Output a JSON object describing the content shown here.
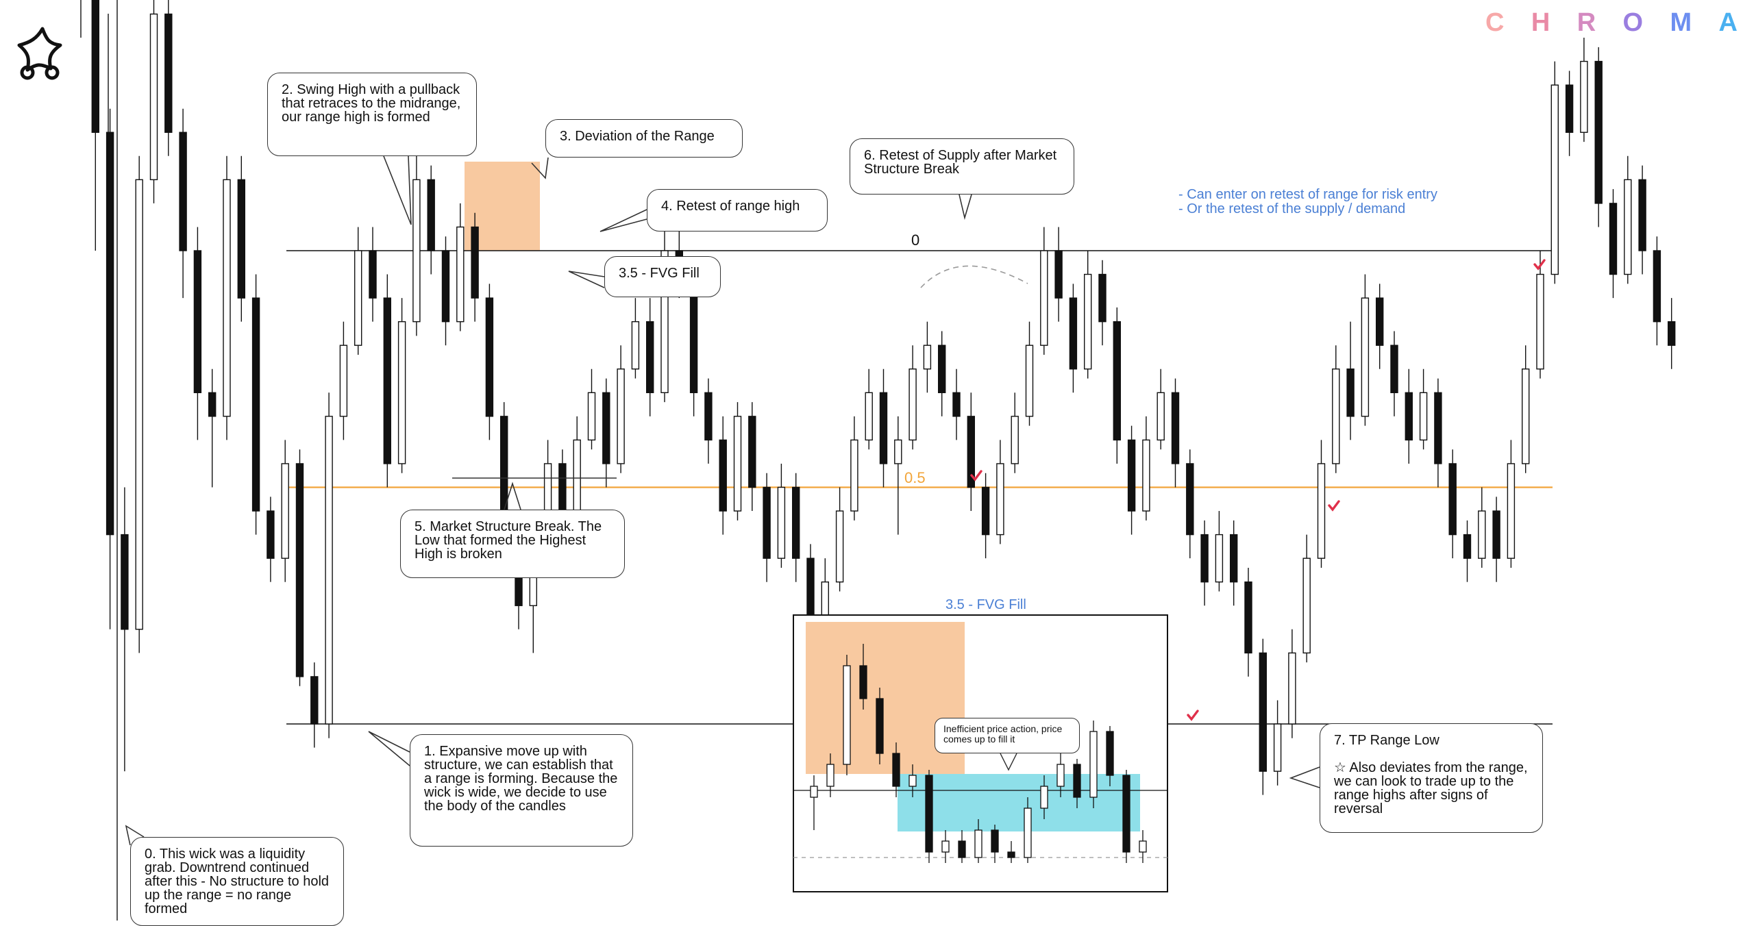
{
  "brand": {
    "letters": [
      "C",
      "H",
      "R",
      "O",
      "M",
      "A"
    ],
    "colors": [
      "#f7a8a8",
      "#e98aa6",
      "#d48ac0",
      "#9a7ee0",
      "#6d8ef0",
      "#4ab0f0"
    ]
  },
  "logo": {
    "icon": "star-knot-icon"
  },
  "levels": {
    "top_label": "0",
    "mid_label": "0.5",
    "mid_color": "#f2a53a"
  },
  "callouts": {
    "c0": "0. This wick was a liquidity grab. Downtrend continued after this - No structure to hold up the range = no range formed",
    "c1": "1. Expansive move up with structure, we can establish that a range is forming. Because the wick is wide, we decide to use the body of the candles",
    "c2": "2. Swing High with a pullback that retraces to the midrange, our range high is formed",
    "c3": "3. Deviation of the Range",
    "c35": "3.5 - FVG Fill",
    "c4": "4. Retest of range high",
    "c5": "5. Market Structure Break. The Low that formed the Highest High is broken",
    "c6": "6. Retest of Supply after Market Structure Break",
    "c7_title": "7. TP Range Low",
    "c7_body": "☆ Also deviates from the range, we can look to trade up to the range highs after signs of reversal",
    "inset_note": "Inefficient price action, price comes up to fill it"
  },
  "notes": {
    "line1": "- Can enter on retest of range for risk entry",
    "line2": "- Or the retest of the supply / demand"
  },
  "inset": {
    "title": "3.5 - FVG Fill"
  },
  "colors": {
    "deviation_box": "#f8c9a0",
    "fvg_box": "#8edfe9",
    "check": "#e0304a",
    "note_blue": "#4a7fd4"
  },
  "chart_data": {
    "type": "candlestick",
    "title": "",
    "xlabel": "",
    "ylabel": "",
    "ylim": [
      -5,
      20
    ],
    "range_levels": {
      "high": 10,
      "mid": 5,
      "low": 0
    },
    "ohlc": [
      [
        19.5,
        21.0,
        14.5,
        16.0
      ],
      [
        16.0,
        17.0,
        10.0,
        12.5
      ],
      [
        12.5,
        13.0,
        2.0,
        4.0
      ],
      [
        4.0,
        5.0,
        -1.0,
        2.0
      ],
      [
        2.0,
        12.0,
        1.5,
        11.5
      ],
      [
        11.5,
        15.5,
        11.0,
        15.0
      ],
      [
        15.0,
        15.8,
        12.0,
        12.5
      ],
      [
        12.5,
        13.0,
        9.0,
        10.0
      ],
      [
        10.0,
        10.5,
        6.0,
        7.0
      ],
      [
        7.0,
        7.5,
        5.0,
        6.5
      ],
      [
        6.5,
        12.0,
        6.0,
        11.5
      ],
      [
        11.5,
        12.0,
        8.5,
        9.0
      ],
      [
        9.0,
        9.5,
        4.0,
        4.5
      ],
      [
        4.5,
        4.8,
        3.0,
        3.5
      ],
      [
        3.5,
        6.0,
        3.0,
        5.5
      ],
      [
        5.5,
        5.8,
        0.8,
        1.0
      ],
      [
        1.0,
        1.3,
        -0.5,
        0.0
      ],
      [
        0.0,
        7.0,
        -0.3,
        6.5
      ],
      [
        6.5,
        8.5,
        6.0,
        8.0
      ],
      [
        8.0,
        10.5,
        7.8,
        10.0
      ],
      [
        10.0,
        10.5,
        8.5,
        9.0
      ],
      [
        9.0,
        9.5,
        5.0,
        5.5
      ],
      [
        5.5,
        9.0,
        5.3,
        8.5
      ],
      [
        8.5,
        12.0,
        8.2,
        11.5
      ],
      [
        11.5,
        11.8,
        9.5,
        10.0
      ],
      [
        10.0,
        10.3,
        8.0,
        8.5
      ],
      [
        8.5,
        11.0,
        8.3,
        10.5
      ],
      [
        10.5,
        10.8,
        8.5,
        9.0
      ],
      [
        9.0,
        9.3,
        6.0,
        6.5
      ],
      [
        6.5,
        6.8,
        4.0,
        4.2
      ],
      [
        4.2,
        4.5,
        2.0,
        2.5
      ],
      [
        2.5,
        4.0,
        1.5,
        3.5
      ],
      [
        3.5,
        6.0,
        3.3,
        5.5
      ],
      [
        5.5,
        5.8,
        3.5,
        4.0
      ],
      [
        4.0,
        6.5,
        3.8,
        6.0
      ],
      [
        6.0,
        7.5,
        5.8,
        7.0
      ],
      [
        7.0,
        7.3,
        5.0,
        5.5
      ],
      [
        5.5,
        8.0,
        5.3,
        7.5
      ],
      [
        7.5,
        9.0,
        7.3,
        8.5
      ],
      [
        8.5,
        9.0,
        6.5,
        7.0
      ],
      [
        7.0,
        10.5,
        6.8,
        10.0
      ],
      [
        10.0,
        10.8,
        9.0,
        9.5
      ],
      [
        9.5,
        9.8,
        6.5,
        7.0
      ],
      [
        7.0,
        7.3,
        5.5,
        6.0
      ],
      [
        6.0,
        6.5,
        4.0,
        4.5
      ],
      [
        4.5,
        6.8,
        4.3,
        6.5
      ],
      [
        6.5,
        6.8,
        4.5,
        5.0
      ],
      [
        5.0,
        5.3,
        3.0,
        3.5
      ],
      [
        3.5,
        5.5,
        3.3,
        5.0
      ],
      [
        5.0,
        5.3,
        3.0,
        3.5
      ],
      [
        3.5,
        3.8,
        1.5,
        2.0
      ],
      [
        2.0,
        3.5,
        1.0,
        3.0
      ],
      [
        3.0,
        5.0,
        2.8,
        4.5
      ],
      [
        4.5,
        6.5,
        4.3,
        6.0
      ],
      [
        6.0,
        7.5,
        5.8,
        7.0
      ],
      [
        7.0,
        7.5,
        5.0,
        5.5
      ],
      [
        5.5,
        6.5,
        4.0,
        6.0
      ],
      [
        6.0,
        8.0,
        5.8,
        7.5
      ],
      [
        7.5,
        8.5,
        7.0,
        8.0
      ],
      [
        8.0,
        8.3,
        6.5,
        7.0
      ],
      [
        7.0,
        7.5,
        6.0,
        6.5
      ],
      [
        6.5,
        7.0,
        4.5,
        5.0
      ],
      [
        5.0,
        5.3,
        3.5,
        4.0
      ],
      [
        4.0,
        6.0,
        3.8,
        5.5
      ],
      [
        5.5,
        7.0,
        5.3,
        6.5
      ],
      [
        6.5,
        8.5,
        6.3,
        8.0
      ],
      [
        8.0,
        10.5,
        7.8,
        10.0
      ],
      [
        10.0,
        10.5,
        8.5,
        9.0
      ],
      [
        9.0,
        9.3,
        7.0,
        7.5
      ],
      [
        7.5,
        10.0,
        7.3,
        9.5
      ],
      [
        9.5,
        9.8,
        8.0,
        8.5
      ],
      [
        8.5,
        8.8,
        5.5,
        6.0
      ],
      [
        6.0,
        6.3,
        4.0,
        4.5
      ],
      [
        4.5,
        6.5,
        4.3,
        6.0
      ],
      [
        6.0,
        7.5,
        5.8,
        7.0
      ],
      [
        7.0,
        7.3,
        5.0,
        5.5
      ],
      [
        5.5,
        5.8,
        3.5,
        4.0
      ],
      [
        4.0,
        4.3,
        2.5,
        3.0
      ],
      [
        3.0,
        4.5,
        2.8,
        4.0
      ],
      [
        4.0,
        4.3,
        2.5,
        3.0
      ],
      [
        3.0,
        3.3,
        1.0,
        1.5
      ],
      [
        1.5,
        1.8,
        -1.5,
        -1.0
      ],
      [
        -1.0,
        0.5,
        -1.3,
        0.0
      ],
      [
        0.0,
        2.0,
        -0.3,
        1.5
      ],
      [
        1.5,
        4.0,
        1.3,
        3.5
      ],
      [
        3.5,
        6.0,
        3.3,
        5.5
      ],
      [
        5.5,
        8.0,
        5.3,
        7.5
      ],
      [
        7.5,
        8.5,
        6.0,
        6.5
      ],
      [
        6.5,
        9.5,
        6.3,
        9.0
      ],
      [
        9.0,
        9.3,
        7.5,
        8.0
      ],
      [
        8.0,
        8.3,
        6.5,
        7.0
      ],
      [
        7.0,
        7.5,
        5.5,
        6.0
      ],
      [
        6.0,
        7.5,
        5.8,
        7.0
      ],
      [
        7.0,
        7.3,
        5.0,
        5.5
      ],
      [
        5.5,
        5.8,
        3.5,
        4.0
      ],
      [
        4.0,
        4.3,
        3.0,
        3.5
      ],
      [
        3.5,
        5.0,
        3.3,
        4.5
      ],
      [
        4.5,
        4.8,
        3.0,
        3.5
      ],
      [
        3.5,
        6.0,
        3.3,
        5.5
      ],
      [
        5.5,
        8.0,
        5.3,
        7.5
      ],
      [
        7.5,
        10.0,
        7.3,
        9.5
      ],
      [
        9.5,
        14.0,
        9.3,
        13.5
      ],
      [
        13.5,
        13.8,
        12.0,
        12.5
      ],
      [
        12.5,
        14.5,
        12.3,
        14.0
      ],
      [
        14.0,
        14.3,
        10.5,
        11.0
      ],
      [
        11.0,
        11.3,
        9.0,
        9.5
      ],
      [
        9.5,
        12.0,
        9.3,
        11.5
      ],
      [
        11.5,
        11.8,
        9.5,
        10.0
      ],
      [
        10.0,
        10.3,
        8.0,
        8.5
      ],
      [
        8.5,
        9.0,
        7.5,
        8.0
      ]
    ]
  }
}
